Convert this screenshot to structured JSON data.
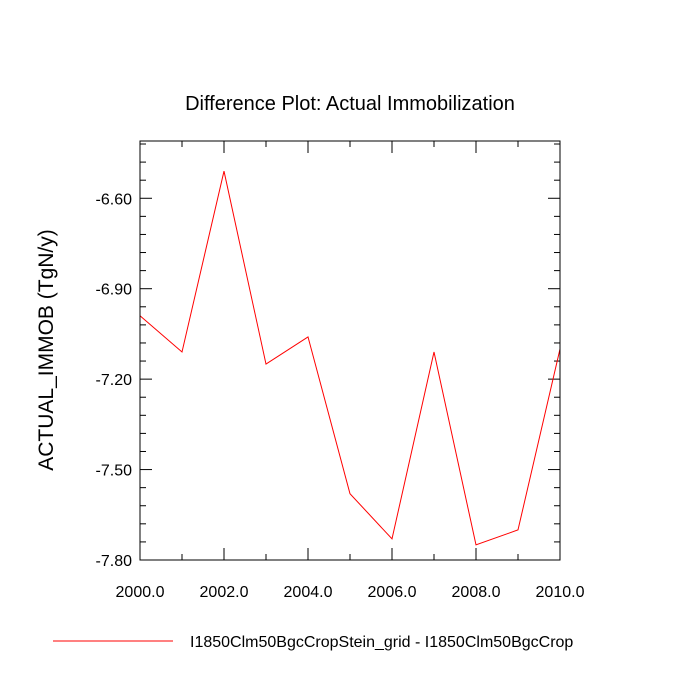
{
  "chart_data": {
    "type": "line",
    "title": "Difference Plot: Actual Immobilization",
    "xlabel": "",
    "ylabel": "ACTUAL_IMMOB  (TgN/y)",
    "xlim": [
      2000,
      2010
    ],
    "ylim": [
      -7.8,
      -6.41
    ],
    "x_ticks": [
      2000,
      2002,
      2004,
      2006,
      2008,
      2010
    ],
    "x_tick_labels": [
      "2000.0",
      "2002.0",
      "2004.0",
      "2006.0",
      "2008.0",
      "2010.0"
    ],
    "y_ticks": [
      -6.6,
      -6.9,
      -7.2,
      -7.5,
      -7.8
    ],
    "y_tick_labels": [
      "-6.60",
      "-6.90",
      "-7.20",
      "-7.50",
      "-7.80"
    ],
    "grid": false,
    "legend_position": "bottom",
    "series": [
      {
        "name": "I1850Clm50BgcCropStein_grid - I1850Clm50BgcCrop",
        "color": "#ff0000",
        "x": [
          2000,
          2001,
          2002,
          2003,
          2004,
          2005,
          2006,
          2007,
          2008,
          2009,
          2010
        ],
        "values": [
          -6.99,
          -7.11,
          -6.51,
          -7.15,
          -7.06,
          -7.58,
          -7.73,
          -7.11,
          -7.75,
          -7.7,
          -7.1
        ]
      }
    ]
  }
}
